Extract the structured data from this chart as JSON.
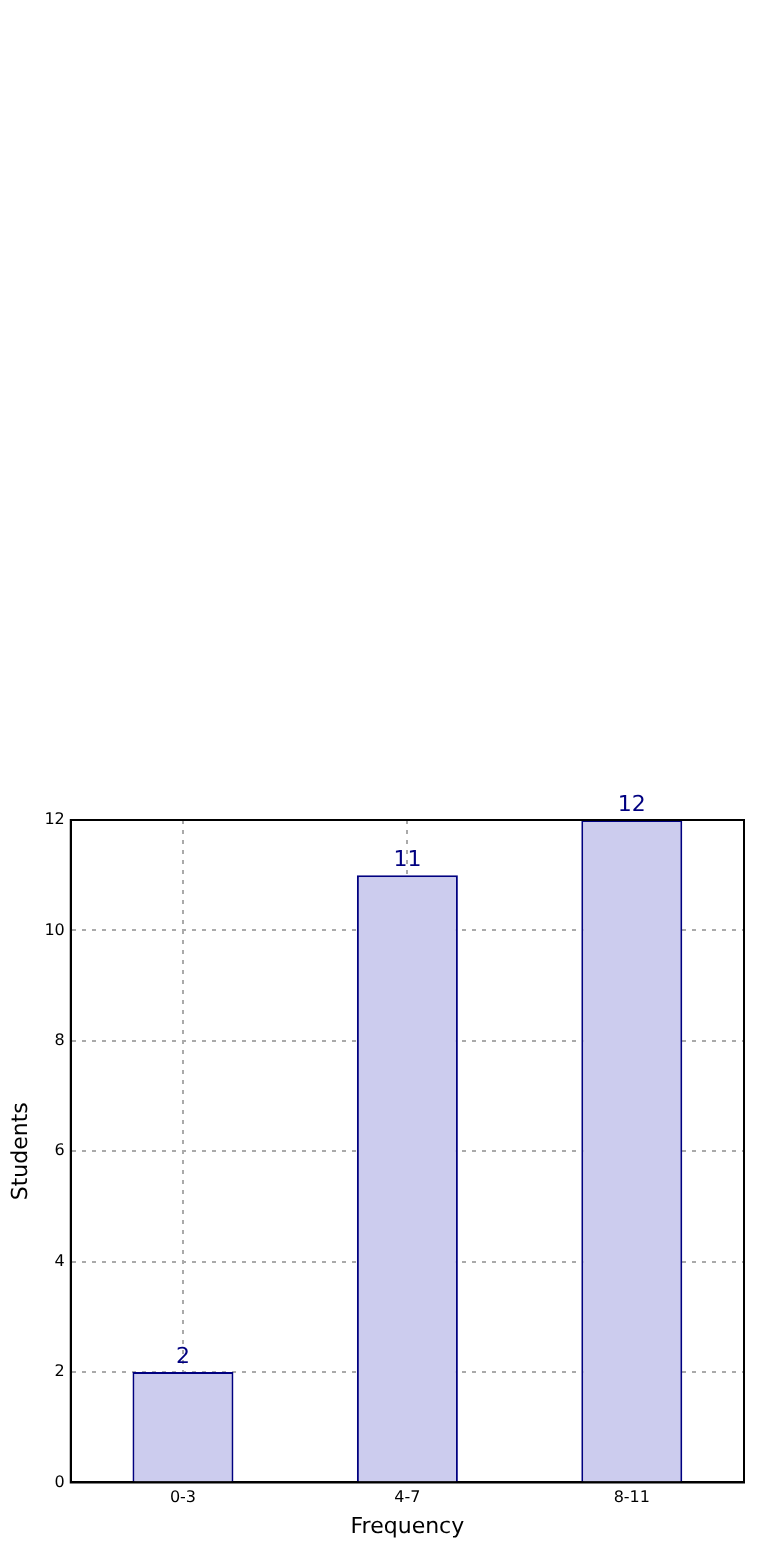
{
  "chart_data": {
    "type": "bar",
    "xlabel": "Frequency",
    "ylabel": "Students",
    "categories": [
      "0-3",
      "4-7",
      "8-11"
    ],
    "values": [
      2,
      11,
      12
    ],
    "color": "#ccccee",
    "ylim": [
      0,
      12
    ],
    "yticks": [
      0,
      2,
      4,
      6,
      8,
      10,
      12
    ],
    "grid": true,
    "data_labels": true,
    "legend": false
  }
}
